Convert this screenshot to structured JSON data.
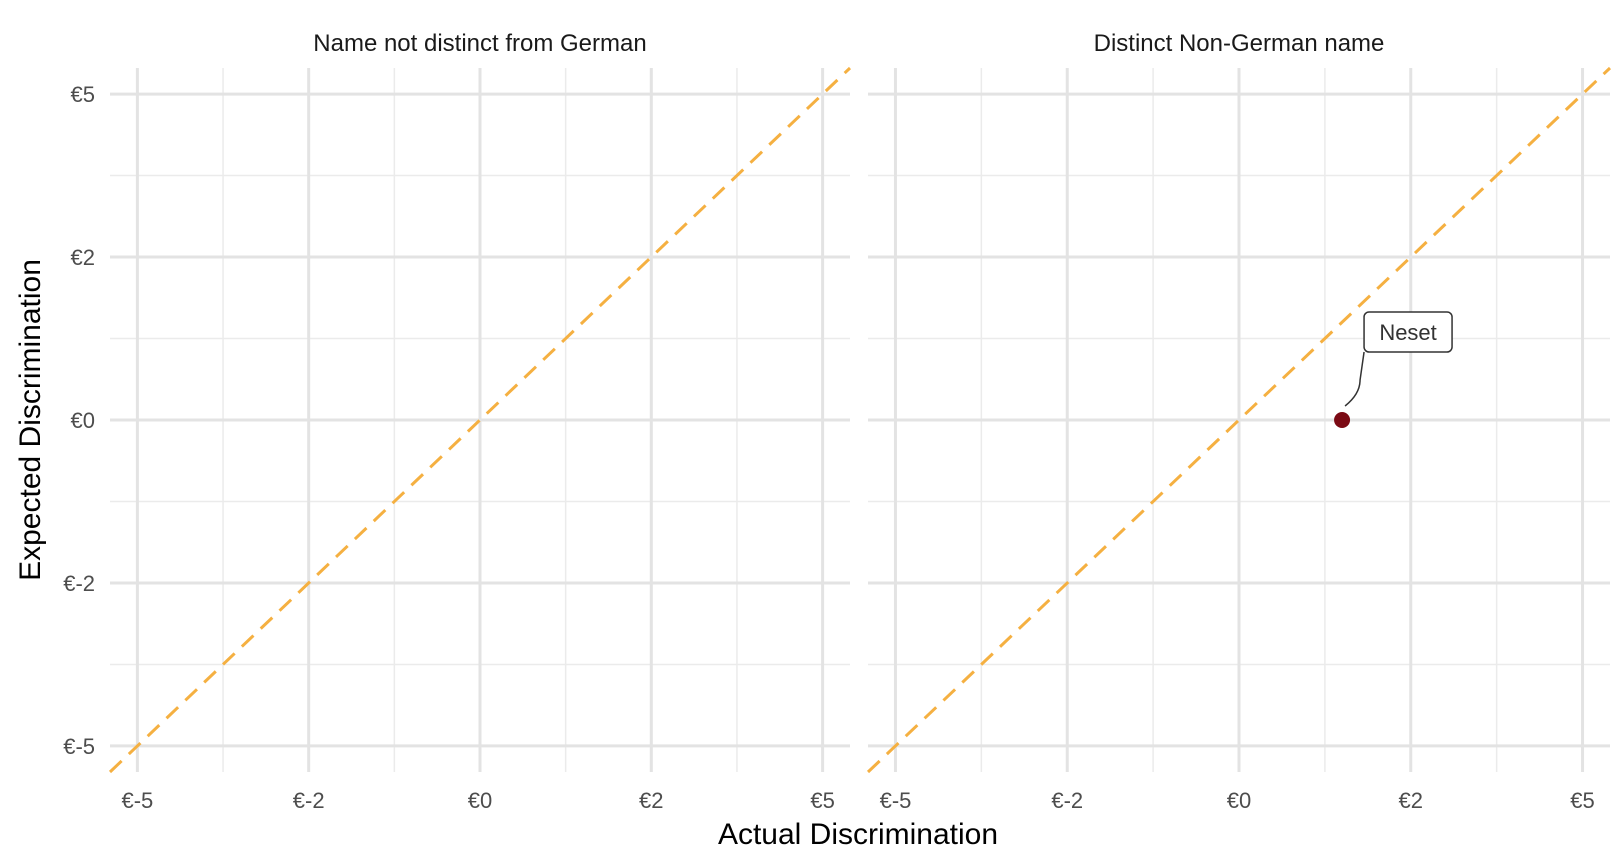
{
  "chart_data": {
    "type": "scatter",
    "xlabel": "Actual Discrimination",
    "ylabel": "Expected Discrimination",
    "xlim": [
      -5.4,
      5.4
    ],
    "ylim": [
      -5.4,
      5.4
    ],
    "grid": true,
    "x_ticks": [
      {
        "value": -5,
        "label": "€-5"
      },
      {
        "value": -2.5,
        "label": "€-2"
      },
      {
        "value": 0,
        "label": "€0"
      },
      {
        "value": 2.5,
        "label": "€2"
      },
      {
        "value": 5,
        "label": "€5"
      }
    ],
    "y_ticks": [
      {
        "value": -5,
        "label": "€-5"
      },
      {
        "value": -2.5,
        "label": "€-2"
      },
      {
        "value": 0,
        "label": "€0"
      },
      {
        "value": 2.5,
        "label": "€2"
      },
      {
        "value": 5,
        "label": "€5"
      }
    ],
    "reference_line": {
      "slope": 1,
      "intercept": 0,
      "style": "dashed",
      "color": "#F5B041"
    },
    "point_color": "#7B0A14",
    "panels": [
      {
        "title": "Name not distinct from German",
        "points": []
      },
      {
        "title": "Distinct Non-German name",
        "points": [
          {
            "x": 1.5,
            "y": 0,
            "label": "Neset"
          }
        ]
      }
    ]
  }
}
